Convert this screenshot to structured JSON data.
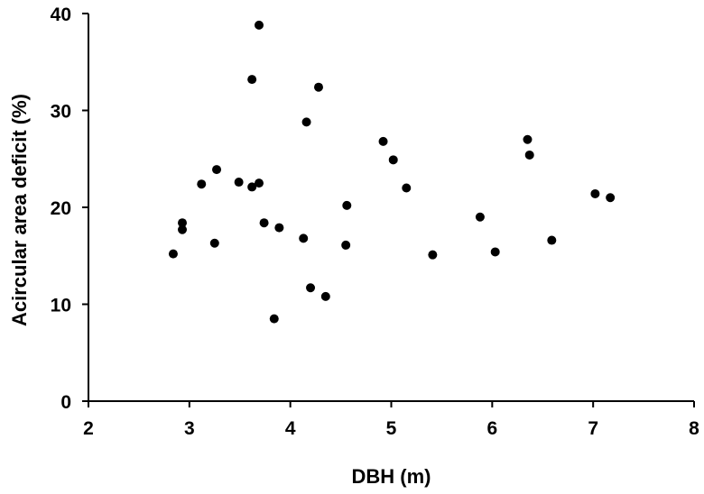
{
  "chart_data": {
    "type": "scatter",
    "title": "",
    "xlabel": "DBH (m)",
    "ylabel": "Acircular area deficit (%)",
    "xlim": [
      2,
      8
    ],
    "ylim": [
      0,
      40
    ],
    "x_ticks": [
      2,
      3,
      4,
      5,
      6,
      7,
      8
    ],
    "y_ticks": [
      0,
      10,
      20,
      30,
      40
    ],
    "grid": false,
    "legend": "none",
    "series": [
      {
        "color": "#000000",
        "points": [
          {
            "x": 2.84,
            "y": 15.2
          },
          {
            "x": 2.93,
            "y": 18.4
          },
          {
            "x": 2.93,
            "y": 17.7
          },
          {
            "x": 3.12,
            "y": 22.4
          },
          {
            "x": 3.25,
            "y": 16.3
          },
          {
            "x": 3.27,
            "y": 23.9
          },
          {
            "x": 3.49,
            "y": 22.6
          },
          {
            "x": 3.62,
            "y": 33.2
          },
          {
            "x": 3.62,
            "y": 22.1
          },
          {
            "x": 3.69,
            "y": 38.8
          },
          {
            "x": 3.69,
            "y": 22.5
          },
          {
            "x": 3.74,
            "y": 18.4
          },
          {
            "x": 3.84,
            "y": 8.5
          },
          {
            "x": 3.89,
            "y": 17.9
          },
          {
            "x": 4.13,
            "y": 16.8
          },
          {
            "x": 4.16,
            "y": 28.8
          },
          {
            "x": 4.2,
            "y": 11.7
          },
          {
            "x": 4.28,
            "y": 32.4
          },
          {
            "x": 4.35,
            "y": 10.8
          },
          {
            "x": 4.55,
            "y": 16.1
          },
          {
            "x": 4.56,
            "y": 20.2
          },
          {
            "x": 4.92,
            "y": 26.8
          },
          {
            "x": 5.02,
            "y": 24.9
          },
          {
            "x": 5.15,
            "y": 22.0
          },
          {
            "x": 5.41,
            "y": 15.1
          },
          {
            "x": 5.88,
            "y": 19.0
          },
          {
            "x": 6.03,
            "y": 15.4
          },
          {
            "x": 6.35,
            "y": 27.0
          },
          {
            "x": 6.37,
            "y": 25.4
          },
          {
            "x": 6.59,
            "y": 16.6
          },
          {
            "x": 7.02,
            "y": 21.4
          },
          {
            "x": 7.17,
            "y": 21.0
          }
        ]
      }
    ]
  }
}
